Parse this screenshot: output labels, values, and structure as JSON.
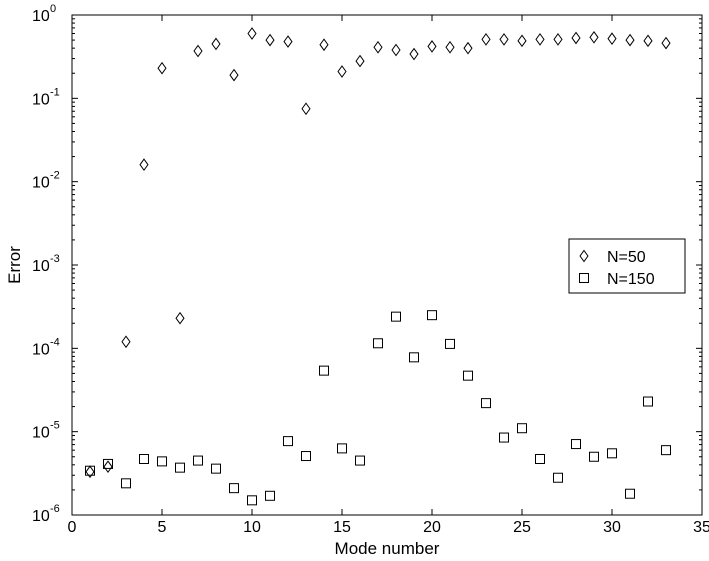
{
  "chart_data": {
    "type": "scatter",
    "xlabel": "Mode number",
    "ylabel": "Error",
    "xlim": [
      0,
      35
    ],
    "ylim": [
      1e-06,
      1
    ],
    "yscale": "log",
    "grid": false,
    "legend_position": "center-right",
    "x_ticks": [
      "0",
      "5",
      "10",
      "15",
      "20",
      "25",
      "30",
      "35"
    ],
    "y_ticks": [
      {
        "base": "10",
        "exp": "-6",
        "value": 1e-06
      },
      {
        "base": "10",
        "exp": "-5",
        "value": 1e-05
      },
      {
        "base": "10",
        "exp": "-4",
        "value": 0.0001
      },
      {
        "base": "10",
        "exp": "-3",
        "value": 0.001
      },
      {
        "base": "10",
        "exp": "-2",
        "value": 0.01
      },
      {
        "base": "10",
        "exp": "-1",
        "value": 0.1
      },
      {
        "base": "10",
        "exp": "0",
        "value": 1
      }
    ],
    "series": [
      {
        "name": "N=50",
        "marker": "diamond",
        "x": [
          1,
          2,
          3,
          4,
          5,
          6,
          7,
          8,
          9,
          10,
          11,
          12,
          13,
          14,
          15,
          16,
          17,
          18,
          19,
          20,
          21,
          22,
          23,
          24,
          25,
          26,
          27,
          28,
          29,
          30,
          31,
          32,
          33
        ],
        "y": [
          3.3e-06,
          3.8e-06,
          0.00012,
          0.016,
          0.23,
          0.00023,
          0.37,
          0.45,
          0.19,
          0.6,
          0.5,
          0.48,
          0.075,
          0.44,
          0.21,
          0.28,
          0.41,
          0.38,
          0.34,
          0.42,
          0.41,
          0.4,
          0.51,
          0.51,
          0.49,
          0.51,
          0.51,
          0.53,
          0.54,
          0.52,
          0.5,
          0.49,
          0.46
        ]
      },
      {
        "name": "N=150",
        "marker": "square",
        "x": [
          1,
          2,
          3,
          4,
          5,
          6,
          7,
          8,
          9,
          10,
          11,
          12,
          13,
          14,
          15,
          16,
          17,
          18,
          19,
          20,
          21,
          22,
          23,
          24,
          25,
          26,
          27,
          28,
          29,
          30,
          31,
          32,
          33
        ],
        "y": [
          3.4e-06,
          4.1e-06,
          2.4e-06,
          4.7e-06,
          4.4e-06,
          3.7e-06,
          4.5e-06,
          3.6e-06,
          2.1e-06,
          1.5e-06,
          1.7e-06,
          7.7e-06,
          5.1e-06,
          5.4e-05,
          6.3e-06,
          4.5e-06,
          0.000115,
          0.00024,
          7.8e-05,
          0.00025,
          0.000113,
          4.7e-05,
          2.2e-05,
          8.5e-06,
          1.1e-05,
          4.7e-06,
          2.8e-06,
          7.1e-06,
          5e-06,
          5.5e-06,
          1.8e-06,
          2.3e-05,
          6e-06
        ]
      }
    ]
  }
}
